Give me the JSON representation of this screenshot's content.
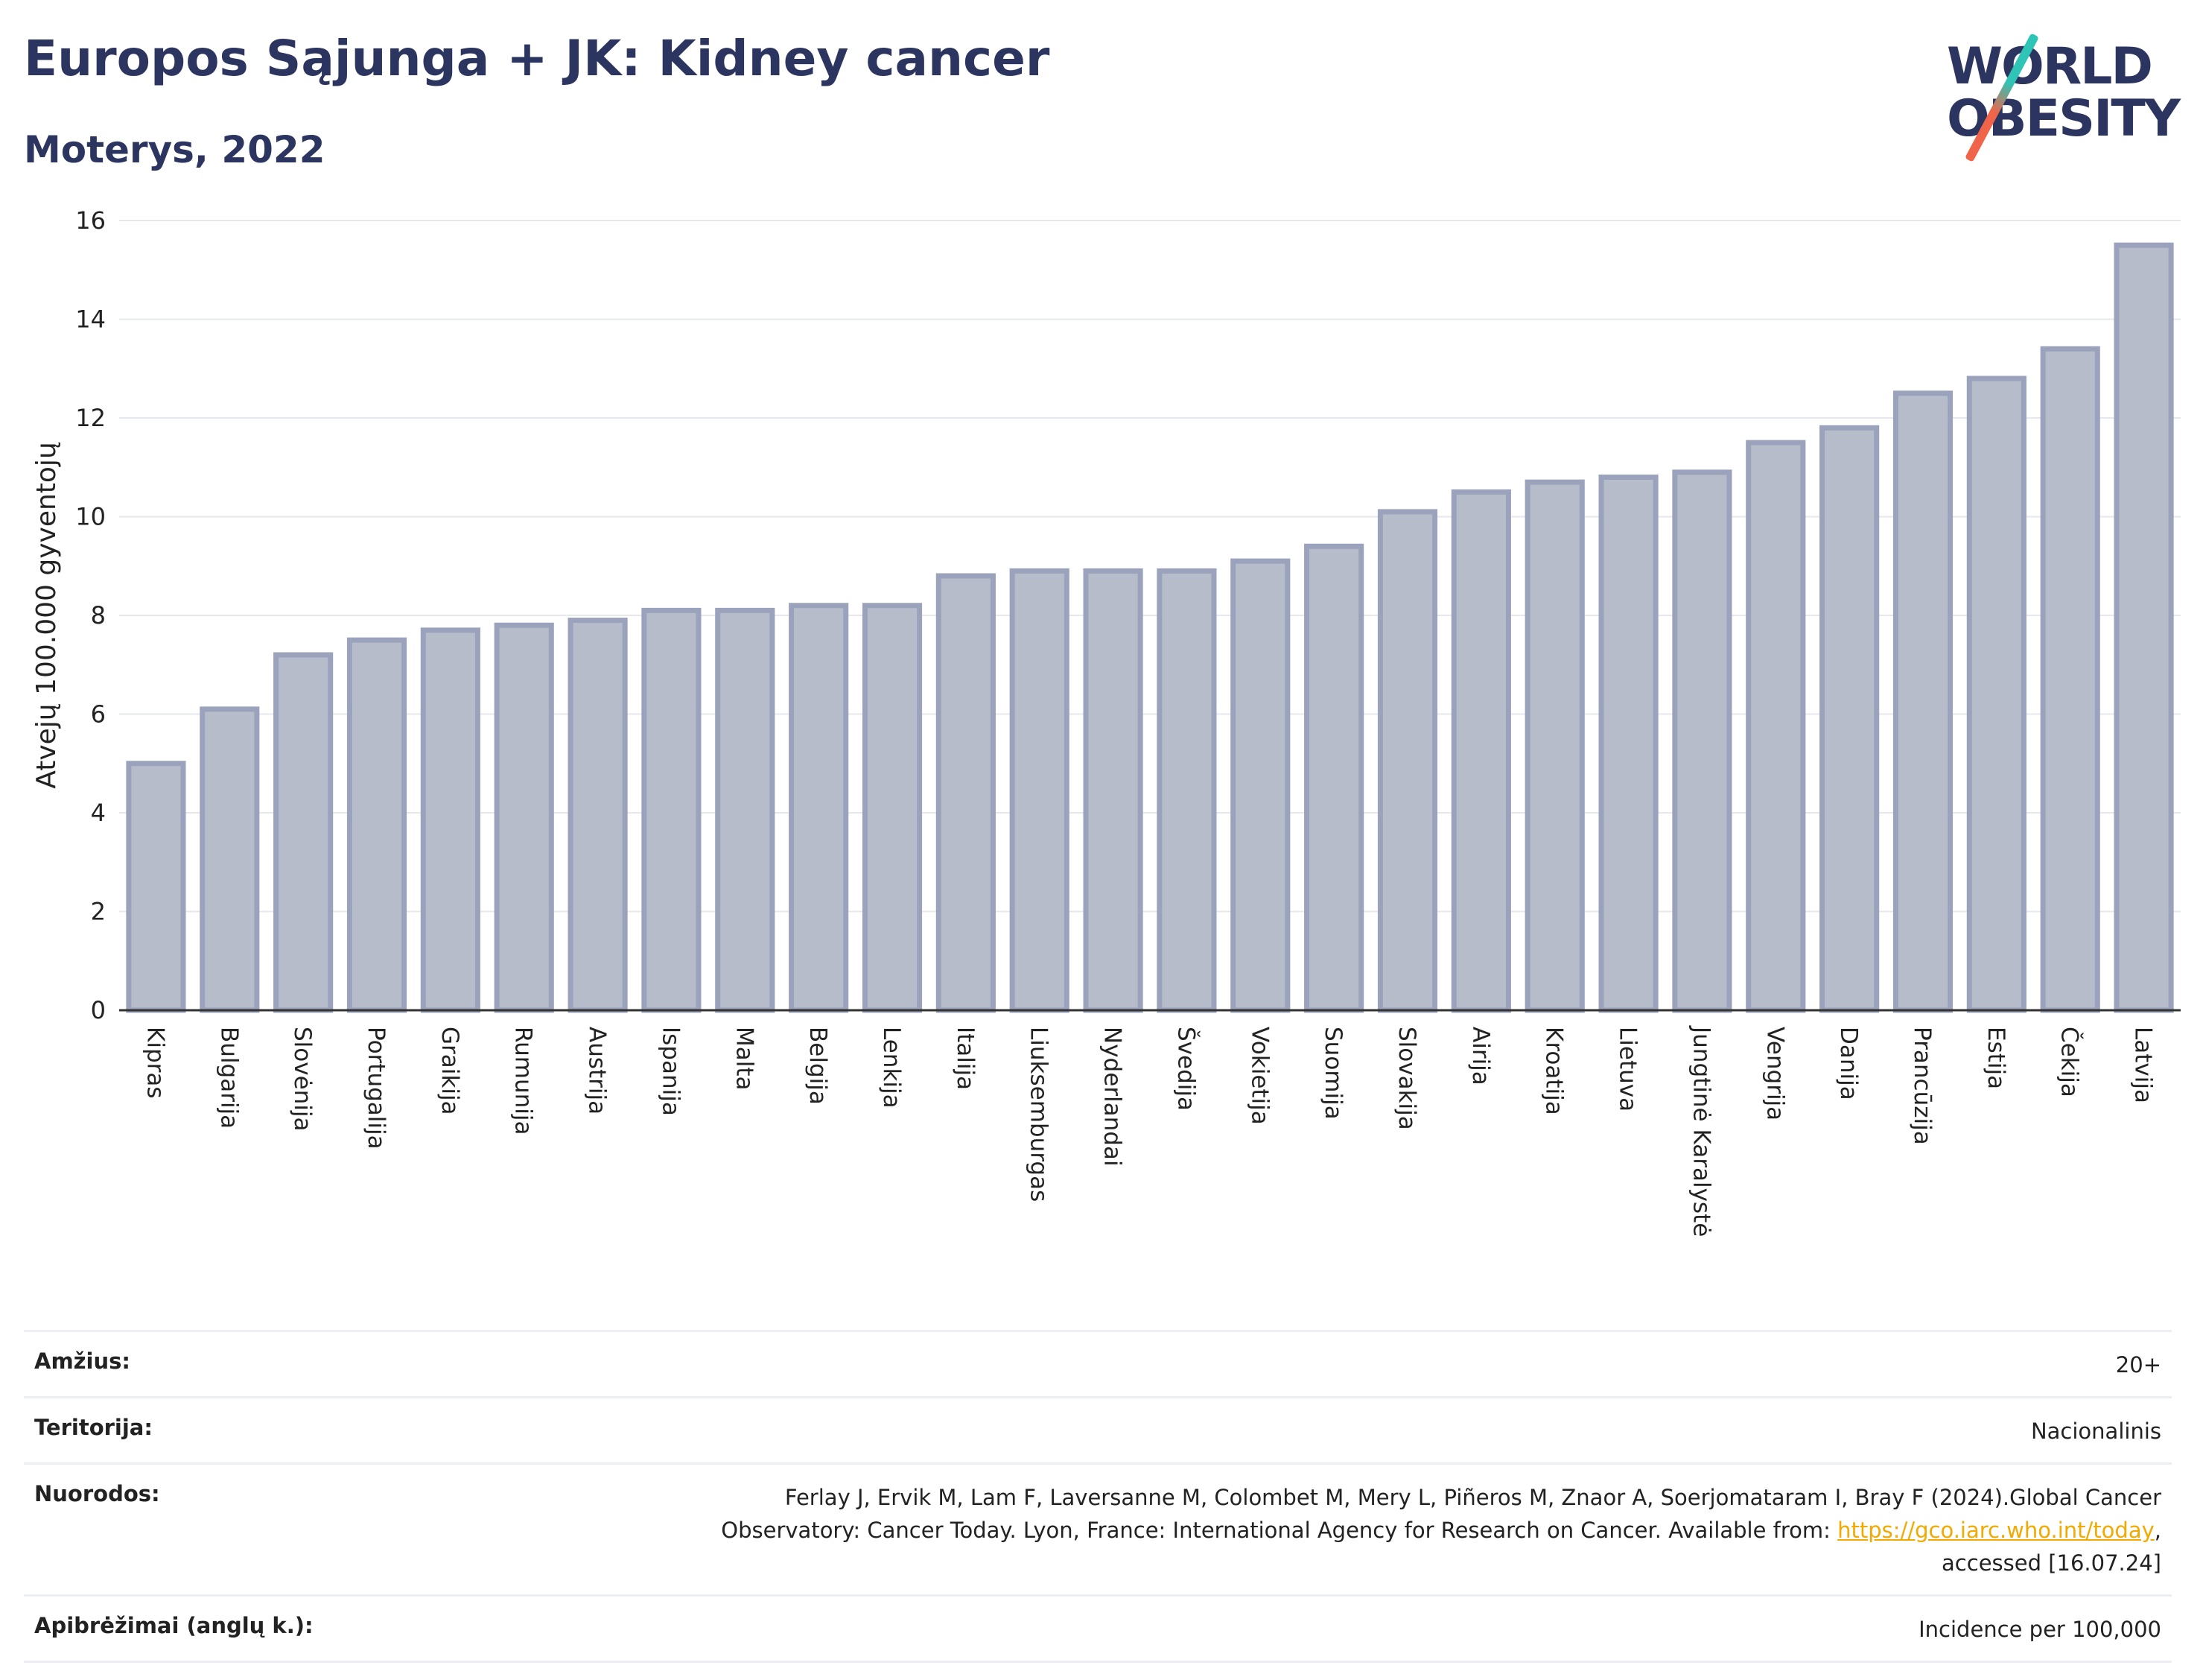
{
  "header": {
    "title": "Europos Sąjunga + JK: Kidney cancer",
    "subtitle": "Moterys, 2022"
  },
  "logo": {
    "line1": "WORLD",
    "line2": "OBESITY"
  },
  "chart_data": {
    "type": "bar",
    "ylabel": "Atvejų 100.000 gyventojų",
    "xlabel": "",
    "ylim": [
      0,
      16
    ],
    "yticks": [
      0,
      2,
      4,
      6,
      8,
      10,
      12,
      14,
      16
    ],
    "grid": true,
    "categories": [
      "Kipras",
      "Bulgarija",
      "Slovėnija",
      "Portugalija",
      "Graikija",
      "Rumunija",
      "Austrija",
      "Ispanija",
      "Malta",
      "Belgija",
      "Lenkija",
      "Italija",
      "Liuksemburgas",
      "Nyderlandai",
      "Švedija",
      "Vokietija",
      "Suomija",
      "Slovakija",
      "Airija",
      "Kroatija",
      "Lietuva",
      "Jungtinė Karalystė",
      "Vengrija",
      "Danija",
      "Prancūzija",
      "Estija",
      "Čekija",
      "Latvija"
    ],
    "values": [
      5.0,
      6.1,
      7.2,
      7.5,
      7.7,
      7.8,
      7.9,
      8.1,
      8.1,
      8.2,
      8.2,
      8.8,
      8.9,
      8.9,
      8.9,
      9.1,
      9.4,
      10.1,
      10.5,
      10.7,
      10.8,
      10.9,
      11.5,
      11.8,
      12.5,
      12.8,
      13.4,
      15.5
    ],
    "colors": {
      "bar_fill": "#b7bccb",
      "bar_stroke": "#9ba2bb"
    }
  },
  "info": {
    "age_label": "Amžius:",
    "age_value": "20+",
    "territory_label": "Teritorija:",
    "territory_value": "Nacionalinis",
    "refs_label": "Nuorodos:",
    "refs_line1": "Ferlay J, Ervik M, Lam F, Laversanne M, Colombet M, Mery L, Piñeros M, Znaor A, Soerjomataram I, Bray F (2024).Global Cancer",
    "refs_line2_pre": "Observatory: Cancer Today. Lyon, France: International Agency for Research on Cancer. Available from: ",
    "refs_link": "https://gco.iarc.who.int/today",
    "refs_line2_post": ",",
    "refs_line3": "accessed [16.07.24]",
    "defs_label": "Apibrėžimai (anglų k.):",
    "defs_value": "Incidence per 100,000"
  }
}
